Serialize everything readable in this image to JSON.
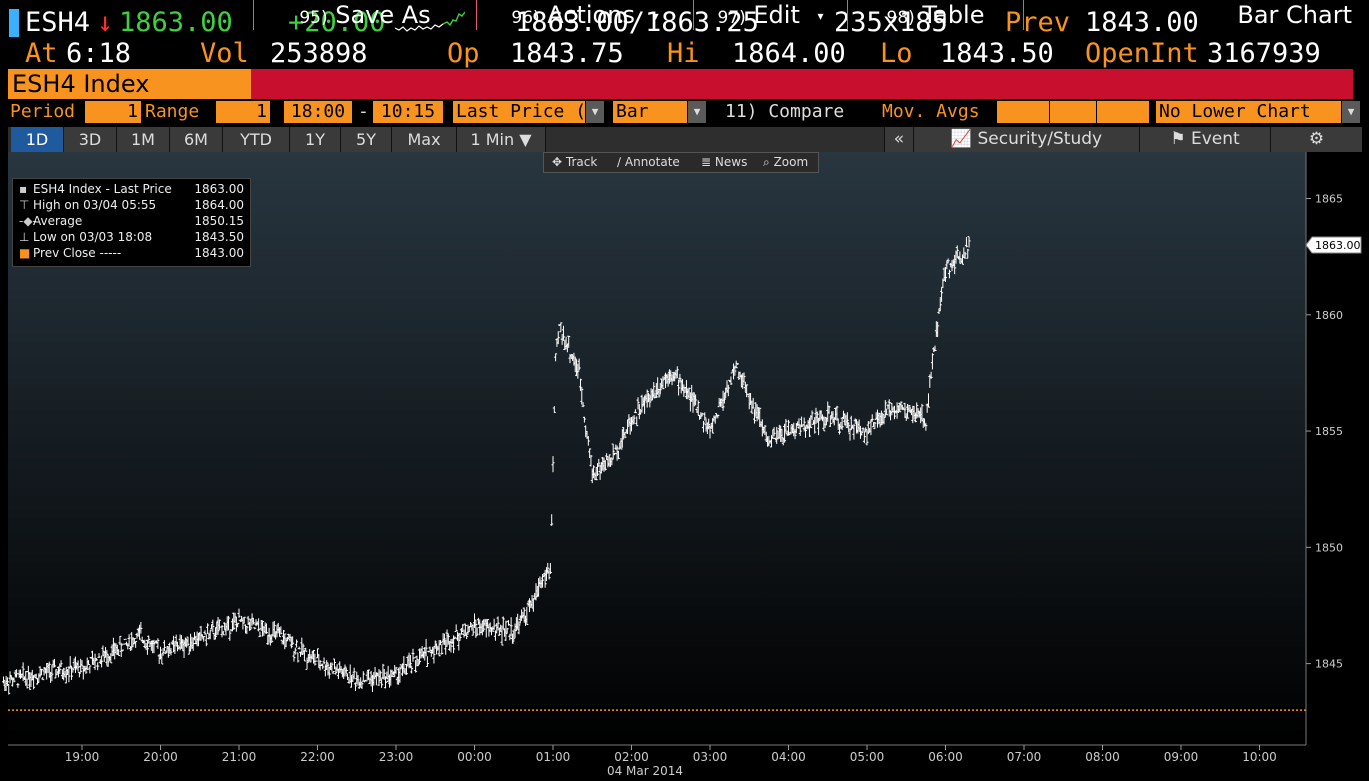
{
  "header": {
    "ticker": "ESH4",
    "arrow": "↓",
    "last": "1863.00",
    "change": "+20.00",
    "bid_ask": "1863.00/1863.25",
    "size": "235x185",
    "prev_label": "Prev",
    "prev_value": "1843.00",
    "at_label": "At",
    "at_value": "6:18",
    "vol_label": "Vol",
    "vol_value": "253898",
    "op_label": "Op",
    "op_value": "1843.75",
    "hi_label": "Hi",
    "hi_value": "1864.00",
    "lo_label": "Lo",
    "lo_value": "1843.50",
    "openint_label": "OpenInt",
    "openint_value": "3167939"
  },
  "menubar": {
    "security": "ESH4 Index",
    "items": [
      {
        "num": "95)",
        "label": "Save As"
      },
      {
        "num": "96)",
        "label": "Actions"
      },
      {
        "num": "97)",
        "label": "Edit"
      },
      {
        "num": "98)",
        "label": "Table"
      }
    ],
    "title": "Bar Chart"
  },
  "params": {
    "period_label": "Period",
    "period_value": "1",
    "range_label": "Range",
    "range_value": "1",
    "start_time": "18:00",
    "dash": "-",
    "end_time": "10:15",
    "market": "Last Price (R",
    "chart_style": "Bar",
    "compare": "11) Compare",
    "mov_avgs": "Mov. Avgs",
    "lower_chart": "No Lower Chart"
  },
  "tabs": [
    "1D",
    "3D",
    "1M",
    "6M",
    "YTD",
    "1Y",
    "5Y",
    "Max",
    "1 Min ▼"
  ],
  "right_tabs": {
    "collapse": "«",
    "security_study": "Security/Study",
    "event": "Event",
    "settings": "⚙"
  },
  "chart_tools": [
    "Track",
    "Annotate",
    "News",
    "Zoom"
  ],
  "legend": [
    {
      "label": "ESH4 Index - Last Price",
      "value": "1863.00"
    },
    {
      "label": "High on 03/04 05:55",
      "value": "1864.00"
    },
    {
      "label": "Average",
      "value": "1850.15"
    },
    {
      "label": "Low on 03/03 18:08",
      "value": "1843.50"
    },
    {
      "label": "Prev Close -----",
      "value": "1843.00"
    }
  ],
  "colors": {
    "accent_orange": "#f7931e",
    "menu_red": "#c8102e",
    "up_green": "#3dd23d",
    "down_red": "#ff3030",
    "active_tab_blue": "#1f5a9e"
  },
  "chart_data": {
    "type": "bar",
    "title": "",
    "x_tick_labels": [
      "19:00",
      "20:00",
      "21:00",
      "22:00",
      "23:00",
      "00:00",
      "01:00",
      "02:00",
      "03:00",
      "04:00",
      "05:00",
      "06:00",
      "07:00",
      "08:00",
      "09:00",
      "10:00"
    ],
    "x_date_label": "04 Mar 2014",
    "y_tick_labels": [
      "1845",
      "1850",
      "1855",
      "1860",
      "1865"
    ],
    "ylim": [
      1841.5,
      1867
    ],
    "last_price_label": "1863.00",
    "prev_close": 1843.0,
    "x": [
      "18:00",
      "18:30",
      "19:00",
      "19:30",
      "19:45",
      "20:00",
      "20:30",
      "21:00",
      "21:30",
      "22:00",
      "22:30",
      "23:00",
      "23:30",
      "00:00",
      "00:30",
      "00:45",
      "00:50",
      "00:58",
      "01:02",
      "01:05",
      "01:20",
      "01:30",
      "01:45",
      "02:00",
      "02:30",
      "02:45",
      "03:00",
      "03:20",
      "03:30",
      "03:45",
      "04:00",
      "04:30",
      "05:00",
      "05:20",
      "05:40",
      "05:45",
      "05:50",
      "05:55",
      "06:00",
      "06:10",
      "06:18"
    ],
    "series": [
      {
        "values": [
          1844.2,
          1844.6,
          1844.8,
          1845.7,
          1846.2,
          1845.5,
          1846.1,
          1846.8,
          1846.2,
          1845.1,
          1844.3,
          1844.5,
          1845.7,
          1846.6,
          1846.4,
          1847.6,
          1848.5,
          1849.0,
          1858.0,
          1859.5,
          1857.5,
          1853.2,
          1853.8,
          1855.5,
          1857.6,
          1856.5,
          1855.0,
          1857.8,
          1856.5,
          1854.5,
          1855.0,
          1855.6,
          1855.0,
          1856.0,
          1855.7,
          1855.3,
          1858.0,
          1860.0,
          1862.0,
          1862.5,
          1863.0
        ]
      }
    ]
  }
}
